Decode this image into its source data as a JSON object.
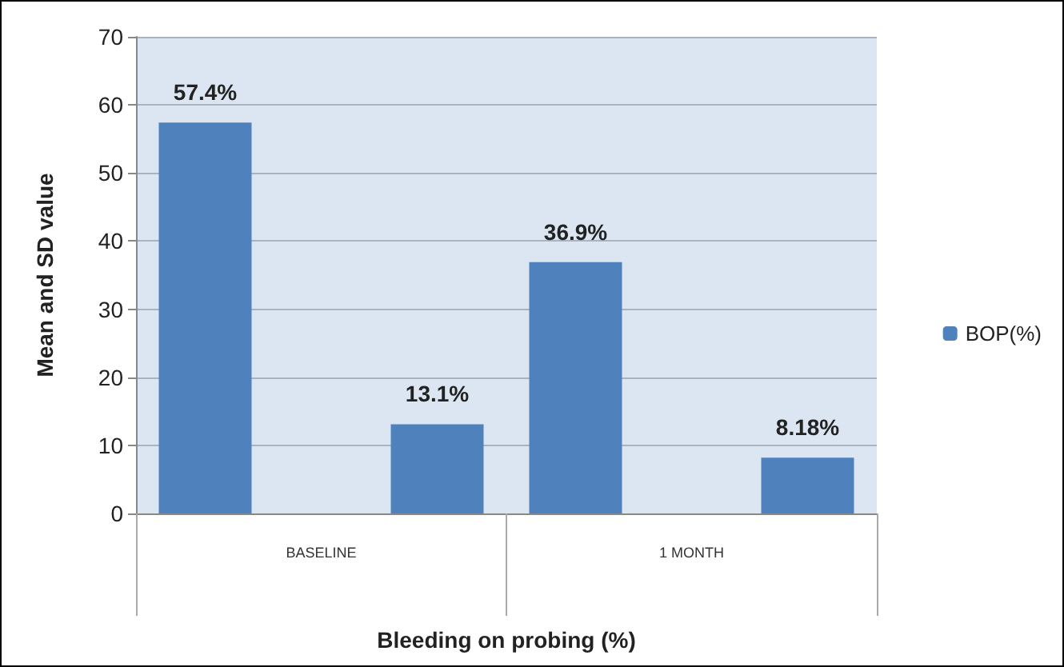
{
  "chart_data": {
    "type": "bar",
    "xlabel": "Bleeding on probing (%)",
    "ylabel": "Mean and SD value",
    "categories": [
      "BASELINE",
      "1 MONTH"
    ],
    "series": [
      {
        "name": "BOP(%)",
        "color": "#4f81bd",
        "values": [
          57.4,
          36.9
        ],
        "value_labels": [
          "57.4%",
          "36.9%"
        ]
      },
      {
        "color": "#4f81bd",
        "values": [
          13.1,
          8.18
        ],
        "value_labels": [
          "13.1%",
          "8.18%"
        ]
      }
    ],
    "ylim": [
      0,
      70
    ],
    "yticks": [
      0,
      10,
      20,
      30,
      40,
      50,
      60,
      70
    ],
    "grid": "y",
    "legend": "right"
  }
}
